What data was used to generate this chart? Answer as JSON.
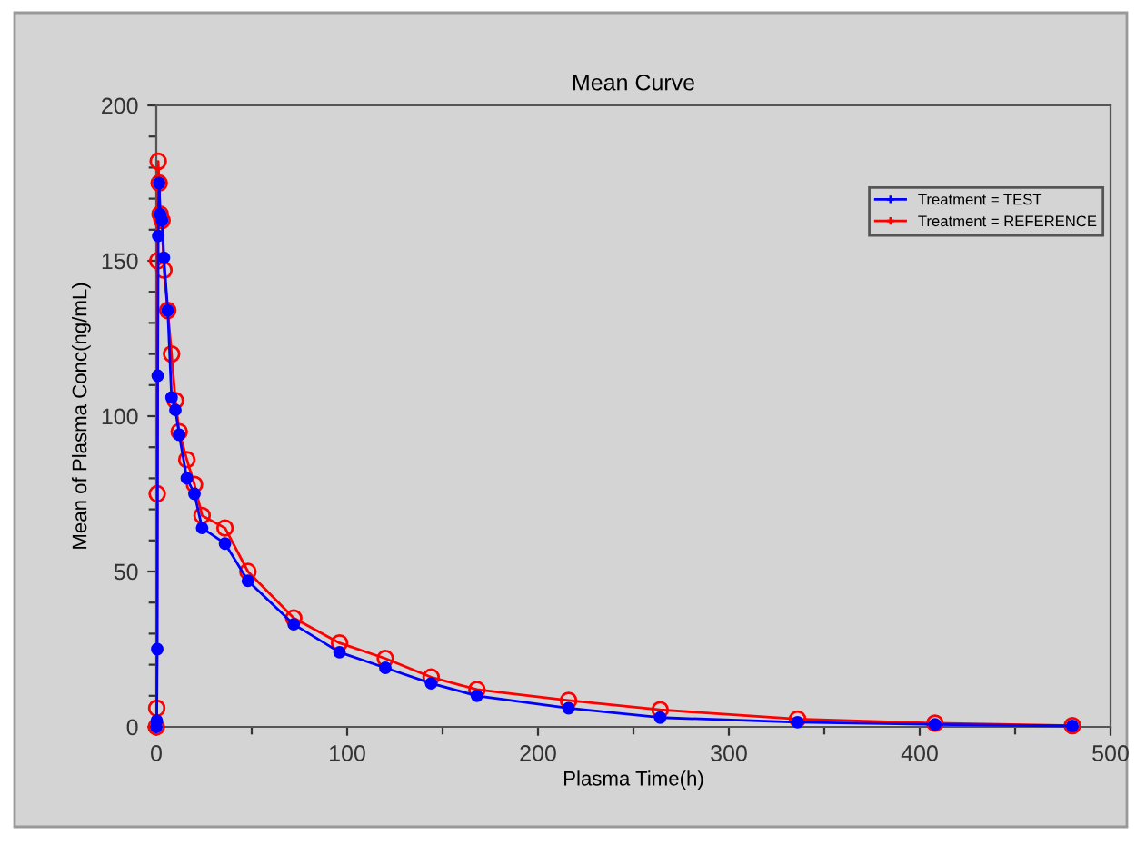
{
  "chart_data": {
    "type": "line",
    "title": "Mean Curve",
    "xlabel": "Plasma Time(h)",
    "ylabel": "Mean of Plasma Conc(ng/mL)",
    "x": [
      0,
      0.25,
      0.5,
      0.75,
      1,
      1.5,
      2,
      3,
      4,
      6,
      8,
      10,
      12,
      16,
      20,
      24,
      36,
      48,
      72,
      96,
      120,
      144,
      168,
      216,
      264,
      336,
      408,
      480
    ],
    "series": [
      {
        "name": "Treatment = TEST",
        "color": "#0000ff",
        "values": [
          0,
          2,
          25,
          113,
          158,
          175,
          165,
          163,
          151,
          134,
          106,
          102,
          94,
          80,
          75,
          64,
          59,
          47,
          33,
          24,
          19,
          14,
          10,
          6,
          3,
          1.5,
          0.8,
          0.3
        ]
      },
      {
        "name": "Treatment = REFERENCE",
        "color": "#ff0000",
        "values": [
          0,
          6,
          75,
          150,
          182,
          175,
          165,
          163,
          147,
          134,
          120,
          105,
          95,
          86,
          78,
          68,
          64,
          50,
          35,
          27,
          22,
          16,
          12,
          8.5,
          5.5,
          2.5,
          1.2,
          0.4
        ]
      }
    ],
    "xlim": [
      0,
      500
    ],
    "xticks": [
      0,
      {
        "value": 50,
        "label": null
      },
      100,
      {
        "value": 150,
        "label": null
      },
      200,
      {
        "value": 250,
        "label": null
      },
      300,
      {
        "value": 350,
        "label": null
      },
      400,
      {
        "value": 450,
        "label": null
      },
      500
    ],
    "ylim": [
      0,
      200
    ],
    "yticks": [
      0,
      {
        "value": 10,
        "label": null
      },
      {
        "value": 20,
        "label": null
      },
      {
        "value": 30,
        "label": null
      },
      {
        "value": 40,
        "label": null
      },
      50,
      {
        "value": 60,
        "label": null
      },
      {
        "value": 70,
        "label": null
      },
      {
        "value": 80,
        "label": null
      },
      {
        "value": 90,
        "label": null
      },
      100,
      {
        "value": 110,
        "label": null
      },
      {
        "value": 120,
        "label": null
      },
      {
        "value": 130,
        "label": null
      },
      {
        "value": 140,
        "label": null
      },
      150,
      {
        "value": 160,
        "label": null
      },
      {
        "value": 170,
        "label": null
      },
      {
        "value": 180,
        "label": null
      },
      {
        "value": 190,
        "label": null
      },
      200
    ],
    "grid": false,
    "legend": "top right",
    "marker": "circle",
    "line_style": "solid"
  }
}
